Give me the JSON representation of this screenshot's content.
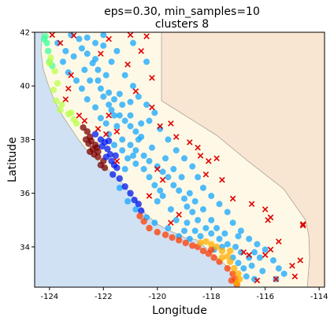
{
  "chart_data": {
    "type": "scatter",
    "title_line1": "eps=0.30, min_samples=10",
    "title_line2": "clusters 8",
    "xlabel": "Longitude",
    "ylabel": "Latitude",
    "xlim": [
      -124.55,
      -113.8
    ],
    "ylim": [
      32.5,
      42.0
    ],
    "x_ticks": [
      "-124",
      "-122",
      "-120",
      "-118",
      "-116",
      "-114"
    ],
    "x_tick_values": [
      -124,
      -122,
      -120,
      -118,
      -116,
      -114
    ],
    "y_ticks": [
      "42",
      "40",
      "38",
      "36",
      "34"
    ],
    "y_tick_values": [
      42,
      40,
      38,
      36,
      34
    ],
    "colors": {
      "ocean": "#cfe1f3",
      "land": "#fdf9e6",
      "neighbor": "#f8e5d2",
      "border": "#b5a79a",
      "main_cluster": "#14a5ff",
      "noise": "#e00000",
      "bay_dark": "#7a0000",
      "bay_blue": "#0018f0",
      "north_coast": "#b9ff4a",
      "south_coast": "#ffae00",
      "coast_red": "#ff3c00",
      "far_north": "#3cff9b"
    },
    "series": [
      {
        "key": "far_north",
        "points": [
          [
            -124.15,
            41.85
          ],
          [
            -124.2,
            41.75
          ],
          [
            -124.1,
            41.6
          ],
          [
            -124.05,
            41.3
          ],
          [
            -124.0,
            40.9
          ],
          [
            -123.9,
            40.75
          ]
        ]
      },
      {
        "key": "north_coast",
        "points": [
          [
            -123.95,
            41.05
          ],
          [
            -124.0,
            40.85
          ],
          [
            -123.8,
            40.55
          ],
          [
            -123.7,
            40.1
          ],
          [
            -123.85,
            39.85
          ],
          [
            -123.75,
            39.45
          ],
          [
            -123.55,
            39.3
          ],
          [
            -123.3,
            38.95
          ],
          [
            -123.1,
            38.75
          ],
          [
            -123.0,
            38.6
          ],
          [
            -123.6,
            39.1
          ],
          [
            -123.2,
            39.0
          ]
        ]
      },
      {
        "key": "bay_dark",
        "points": [
          [
            -122.75,
            38.45
          ],
          [
            -122.6,
            38.3
          ],
          [
            -122.5,
            38.1
          ],
          [
            -122.45,
            37.95
          ],
          [
            -122.3,
            37.8
          ],
          [
            -122.25,
            37.7
          ],
          [
            -122.4,
            37.65
          ],
          [
            -122.5,
            37.55
          ],
          [
            -122.35,
            37.45
          ],
          [
            -122.2,
            37.35
          ],
          [
            -122.0,
            37.2
          ],
          [
            -122.1,
            37.05
          ],
          [
            -121.95,
            36.95
          ],
          [
            -122.55,
            37.85
          ],
          [
            -122.65,
            38.0
          ],
          [
            -122.2,
            37.55
          ]
        ]
      },
      {
        "key": "bay_blue",
        "points": [
          [
            -122.3,
            38.2
          ],
          [
            -122.1,
            38.0
          ],
          [
            -121.95,
            37.9
          ],
          [
            -121.85,
            37.65
          ],
          [
            -121.75,
            37.45
          ],
          [
            -121.9,
            37.35
          ],
          [
            -121.7,
            37.2
          ],
          [
            -121.6,
            37.05
          ],
          [
            -121.5,
            36.95
          ],
          [
            -121.65,
            36.7
          ],
          [
            -121.4,
            36.55
          ],
          [
            -121.2,
            36.25
          ],
          [
            -121.0,
            36.0
          ],
          [
            -120.85,
            35.75
          ],
          [
            -120.7,
            35.6
          ],
          [
            -120.6,
            35.35
          ],
          [
            -122.05,
            37.75
          ],
          [
            -121.8,
            37.95
          ],
          [
            -121.55,
            37.4
          ]
        ]
      },
      {
        "key": "coast_red",
        "points": [
          [
            -120.65,
            35.15
          ],
          [
            -120.5,
            34.95
          ],
          [
            -120.3,
            34.7
          ],
          [
            -120.0,
            34.55
          ],
          [
            -119.7,
            34.45
          ],
          [
            -119.45,
            34.35
          ],
          [
            -119.2,
            34.25
          ],
          [
            -118.95,
            34.15
          ],
          [
            -118.7,
            34.05
          ],
          [
            -118.5,
            34.0
          ],
          [
            -118.3,
            33.85
          ],
          [
            -118.1,
            33.75
          ],
          [
            -117.9,
            33.6
          ],
          [
            -117.7,
            33.45
          ],
          [
            -117.4,
            33.2
          ],
          [
            -117.2,
            33.0
          ],
          [
            -117.1,
            32.8
          ],
          [
            -117.05,
            32.6
          ],
          [
            -117.25,
            32.75
          ],
          [
            -118.0,
            33.9
          ]
        ]
      },
      {
        "key": "south_coast",
        "points": [
          [
            -118.2,
            34.2
          ],
          [
            -118.0,
            34.1
          ],
          [
            -117.8,
            34.0
          ],
          [
            -117.6,
            33.85
          ],
          [
            -117.4,
            33.65
          ],
          [
            -117.3,
            33.45
          ],
          [
            -117.15,
            33.2
          ],
          [
            -117.0,
            33.0
          ],
          [
            -116.95,
            32.8
          ],
          [
            -117.05,
            32.65
          ],
          [
            -117.3,
            33.85
          ],
          [
            -118.4,
            34.15
          ],
          [
            -117.6,
            33.6
          ]
        ]
      },
      {
        "key": "main_cluster",
        "points": [
          [
            -123.2,
            41.9
          ],
          [
            -122.9,
            41.75
          ],
          [
            -122.6,
            41.8
          ],
          [
            -122.3,
            41.6
          ],
          [
            -122.0,
            41.5
          ],
          [
            -122.6,
            41.2
          ],
          [
            -122.4,
            40.85
          ],
          [
            -122.2,
            40.6
          ],
          [
            -121.9,
            40.4
          ],
          [
            -122.5,
            40.2
          ],
          [
            -122.1,
            39.9
          ],
          [
            -121.8,
            39.75
          ],
          [
            -121.6,
            39.5
          ],
          [
            -121.3,
            39.3
          ],
          [
            -122.0,
            39.6
          ],
          [
            -121.7,
            39.1
          ],
          [
            -121.4,
            38.9
          ],
          [
            -121.2,
            38.7
          ],
          [
            -121.0,
            38.5
          ],
          [
            -120.8,
            38.3
          ],
          [
            -120.6,
            38.1
          ],
          [
            -121.5,
            38.5
          ],
          [
            -121.3,
            38.0
          ],
          [
            -121.0,
            37.8
          ],
          [
            -120.8,
            37.6
          ],
          [
            -120.5,
            37.4
          ],
          [
            -120.3,
            37.2
          ],
          [
            -120.0,
            37.0
          ],
          [
            -119.8,
            36.8
          ],
          [
            -119.6,
            36.6
          ],
          [
            -119.4,
            36.3
          ],
          [
            -119.2,
            36.1
          ],
          [
            -119.0,
            35.8
          ],
          [
            -118.9,
            35.5
          ],
          [
            -118.7,
            35.3
          ],
          [
            -118.5,
            35.0
          ],
          [
            -118.2,
            34.7
          ],
          [
            -118.0,
            34.5
          ],
          [
            -117.7,
            34.3
          ],
          [
            -117.4,
            34.1
          ],
          [
            -117.1,
            34.0
          ],
          [
            -116.9,
            33.8
          ],
          [
            -116.6,
            33.6
          ],
          [
            -116.4,
            33.8
          ],
          [
            -116.2,
            33.6
          ],
          [
            -116.5,
            33.3
          ],
          [
            -116.8,
            33.2
          ],
          [
            -116.7,
            32.9
          ],
          [
            -117.0,
            33.4
          ],
          [
            -117.2,
            33.6
          ],
          [
            -117.6,
            34.0
          ],
          [
            -118.4,
            34.4
          ],
          [
            -118.8,
            34.3
          ],
          [
            -119.0,
            34.6
          ],
          [
            -119.3,
            35.0
          ],
          [
            -119.5,
            35.4
          ],
          [
            -119.8,
            35.9
          ],
          [
            -120.1,
            36.3
          ],
          [
            -120.3,
            36.6
          ],
          [
            -120.5,
            36.9
          ],
          [
            -120.8,
            37.1
          ],
          [
            -121.1,
            37.3
          ],
          [
            -121.3,
            37.6
          ],
          [
            -121.6,
            37.8
          ],
          [
            -121.8,
            38.2
          ],
          [
            -121.9,
            38.6
          ],
          [
            -122.1,
            38.8
          ],
          [
            -122.3,
            39.2
          ],
          [
            -122.6,
            39.5
          ],
          [
            -122.8,
            39.9
          ],
          [
            -123.0,
            40.2
          ],
          [
            -123.3,
            40.5
          ],
          [
            -123.5,
            40.9
          ],
          [
            -123.4,
            41.3
          ],
          [
            -122.8,
            41.4
          ],
          [
            -122.3,
            41.0
          ],
          [
            -121.7,
            40.9
          ],
          [
            -121.2,
            40.4
          ],
          [
            -120.9,
            40.0
          ],
          [
            -120.7,
            39.6
          ],
          [
            -120.4,
            39.3
          ],
          [
            -120.1,
            39.0
          ],
          [
            -120.3,
            38.7
          ],
          [
            -119.9,
            38.4
          ],
          [
            -119.6,
            38.0
          ],
          [
            -119.3,
            37.6
          ],
          [
            -119.0,
            37.3
          ],
          [
            -118.7,
            37.0
          ],
          [
            -118.5,
            36.6
          ],
          [
            -118.3,
            36.2
          ],
          [
            -118.0,
            35.9
          ],
          [
            -117.7,
            35.6
          ],
          [
            -117.4,
            35.3
          ],
          [
            -117.2,
            34.9
          ],
          [
            -116.9,
            34.6
          ],
          [
            -116.6,
            34.3
          ],
          [
            -116.3,
            34.1
          ],
          [
            -116.0,
            33.9
          ],
          [
            -115.7,
            33.5
          ],
          [
            -115.5,
            33.2
          ],
          [
            -115.6,
            32.8
          ],
          [
            -115.3,
            33.0
          ],
          [
            -116.1,
            33.1
          ],
          [
            -116.4,
            32.8
          ],
          [
            -121.0,
            38.9
          ],
          [
            -120.6,
            38.6
          ],
          [
            -121.6,
            38.9
          ],
          [
            -121.8,
            39.3
          ],
          [
            -122.2,
            40.2
          ],
          [
            -120.2,
            37.7
          ],
          [
            -119.7,
            37.3
          ],
          [
            -119.4,
            36.9
          ],
          [
            -119.1,
            36.6
          ],
          [
            -118.8,
            36.0
          ],
          [
            -118.6,
            35.7
          ],
          [
            -119.9,
            36.1
          ],
          [
            -120.0,
            35.7
          ],
          [
            -118.3,
            35.4
          ],
          [
            -118.0,
            35.0
          ],
          [
            -117.8,
            34.7
          ],
          [
            -117.5,
            34.5
          ],
          [
            -118.6,
            34.6
          ],
          [
            -117.9,
            33.9
          ],
          [
            -117.0,
            34.4
          ],
          [
            -121.4,
            39.7
          ],
          [
            -122.7,
            40.6
          ],
          [
            -123.1,
            41.1
          ],
          [
            -123.7,
            41.6
          ],
          [
            -122.0,
            41.9
          ],
          [
            -121.5,
            41.3
          ],
          [
            -120.9,
            41.6
          ],
          [
            -120.4,
            40.9
          ],
          [
            -121.0,
            39.4
          ],
          [
            -120.7,
            38.0
          ],
          [
            -120.9,
            37.4
          ],
          [
            -121.2,
            36.9
          ],
          [
            -121.4,
            36.2
          ],
          [
            -121.1,
            35.7
          ],
          [
            -120.8,
            35.4
          ],
          [
            -120.4,
            35.1
          ],
          [
            -120.1,
            34.9
          ],
          [
            -119.6,
            34.7
          ],
          [
            -119.2,
            34.4
          ],
          [
            -118.9,
            34.9
          ]
        ]
      },
      {
        "key": "noise",
        "points": [
          [
            -123.9,
            41.9
          ],
          [
            -123.1,
            41.88
          ],
          [
            -121.8,
            41.75
          ],
          [
            -121.0,
            41.9
          ],
          [
            -120.4,
            41.85
          ],
          [
            -123.6,
            41.6
          ],
          [
            -122.1,
            41.2
          ],
          [
            -120.6,
            41.3
          ],
          [
            -123.2,
            40.4
          ],
          [
            -121.1,
            40.8
          ],
          [
            -120.2,
            40.3
          ],
          [
            -123.3,
            39.9
          ],
          [
            -120.8,
            39.8
          ],
          [
            -123.4,
            39.5
          ],
          [
            -120.2,
            39.2
          ],
          [
            -122.9,
            38.9
          ],
          [
            -122.7,
            38.7
          ],
          [
            -121.5,
            38.3
          ],
          [
            -121.9,
            38.2
          ],
          [
            -119.9,
            38.5
          ],
          [
            -119.3,
            38.1
          ],
          [
            -119.5,
            38.6
          ],
          [
            -118.8,
            37.9
          ],
          [
            -118.5,
            37.7
          ],
          [
            -118.4,
            37.4
          ],
          [
            -118.1,
            37.2
          ],
          [
            -117.8,
            37.3
          ],
          [
            -118.2,
            36.7
          ],
          [
            -117.6,
            36.5
          ],
          [
            -119.8,
            36.5
          ],
          [
            -120.3,
            35.9
          ],
          [
            -117.2,
            35.8
          ],
          [
            -116.5,
            35.6
          ],
          [
            -116.0,
            35.4
          ],
          [
            -115.8,
            35.1
          ],
          [
            -115.9,
            35.0
          ],
          [
            -114.6,
            34.85
          ],
          [
            -114.6,
            34.8
          ],
          [
            -115.5,
            34.2
          ],
          [
            -115.8,
            33.9
          ],
          [
            -116.0,
            33.7
          ],
          [
            -116.6,
            33.7
          ],
          [
            -116.8,
            33.8
          ],
          [
            -115.0,
            33.3
          ],
          [
            -114.7,
            33.5
          ],
          [
            -114.9,
            32.9
          ],
          [
            -115.6,
            32.8
          ],
          [
            -116.3,
            32.75
          ],
          [
            -119.2,
            35.2
          ],
          [
            -119.5,
            34.9
          ],
          [
            -120.0,
            36.9
          ],
          [
            -121.8,
            38.9
          ],
          [
            -122.2,
            38.4
          ],
          [
            -121.5,
            37.2
          ]
        ]
      }
    ]
  }
}
